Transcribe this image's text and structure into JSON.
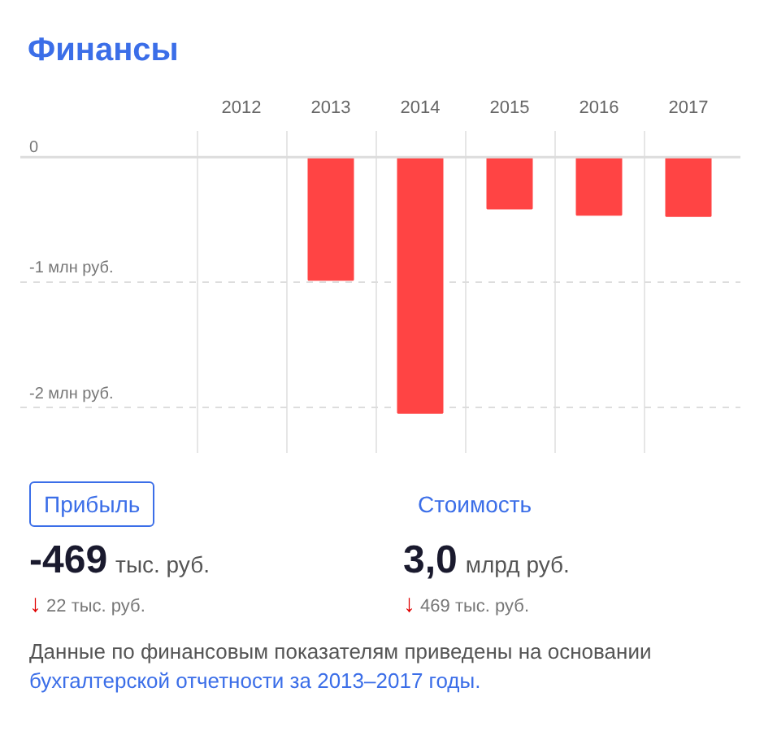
{
  "chart_data": {
    "type": "bar",
    "title": "Финансы",
    "categories": [
      "2012",
      "2013",
      "2014",
      "2015",
      "2016",
      "2017"
    ],
    "values": [
      null,
      -0.98,
      -2.04,
      -0.41,
      -0.46,
      -0.47
    ],
    "color": "#ff4444",
    "ylim": [
      -2.36,
      0.21
    ],
    "yticks": [
      {
        "value": 0,
        "label": "0"
      },
      {
        "value": -1,
        "label": "-1 млн руб."
      },
      {
        "value": -2,
        "label": "-2 млн руб."
      }
    ],
    "grid": true,
    "annotations": [
      "Прибыль",
      "Стоимость",
      "-469",
      "тыс. руб.",
      "3,0",
      "млрд руб.",
      "↓ 22 тыс. руб.",
      "↓ 469 тыс. руб.",
      "Данные по финансовым показателям приведены на основании",
      "бухгалтерской отчетности за 2013–2017 годы."
    ]
  }
}
